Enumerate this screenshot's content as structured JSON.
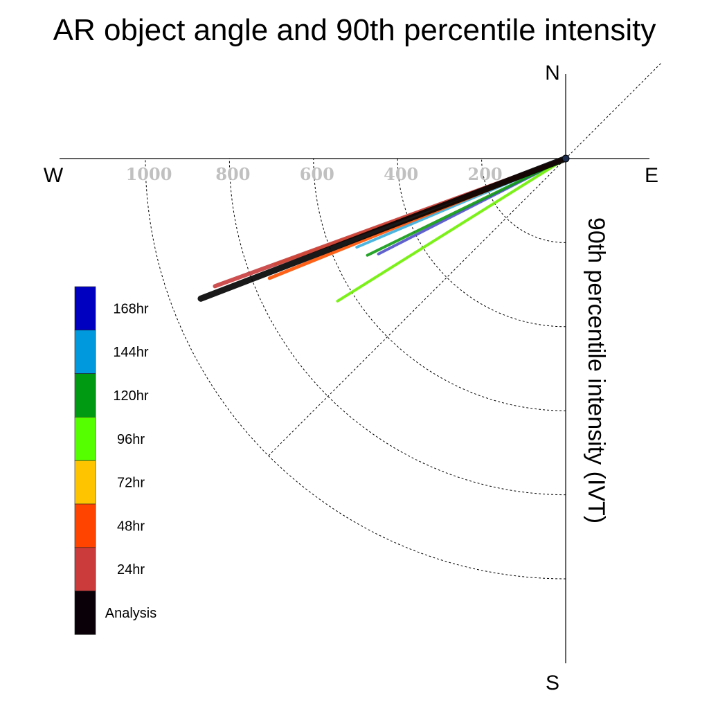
{
  "chart_data": {
    "type": "polar-vector",
    "title": "AR object angle and 90th percentile intensity",
    "ylabel": "90th percentile intensity (IVT)",
    "compass": {
      "north": "N",
      "south": "S",
      "east": "E",
      "west": "W"
    },
    "radial_ticks": [
      "1000",
      "800",
      "600",
      "400",
      "200"
    ],
    "radial_tick_values": [
      1000,
      800,
      600,
      400,
      200
    ],
    "rlim": [
      0,
      1000
    ],
    "grid": true,
    "legend_position": "left",
    "colorbar": [
      {
        "label": "168hr",
        "color": "#0000c0"
      },
      {
        "label": "144hr",
        "color": "#0099dd"
      },
      {
        "label": "120hr",
        "color": "#009a12"
      },
      {
        "label": "96hr",
        "color": "#55ff00"
      },
      {
        "label": "72hr",
        "color": "#ffc400"
      },
      {
        "label": "48hr",
        "color": "#ff4400"
      },
      {
        "label": "24hr",
        "color": "#cc3b3b"
      },
      {
        "label": "Analysis",
        "color": "#0a0008"
      }
    ],
    "series": [
      {
        "name": "168hr",
        "color": "#5050c8",
        "angle_deg": 243,
        "intensity": 500
      },
      {
        "name": "144hr",
        "color": "#3aaedc",
        "angle_deg": 247,
        "intensity": 540
      },
      {
        "name": "120hr",
        "color": "#0f9a12",
        "angle_deg": 244,
        "intensity": 525
      },
      {
        "name": "96hr",
        "color": "#6ef000",
        "angle_deg": 238,
        "intensity": 640
      },
      {
        "name": "72hr",
        "color": "#ffb000",
        "angle_deg": 250,
        "intensity": 735
      },
      {
        "name": "48hr",
        "color": "#ff5000",
        "angle_deg": 248,
        "intensity": 760
      },
      {
        "name": "24hr",
        "color": "#c83c3c",
        "angle_deg": 250,
        "intensity": 888
      },
      {
        "name": "Analysis",
        "color": "#000000",
        "angle_deg": 249,
        "intensity": 930
      }
    ]
  }
}
